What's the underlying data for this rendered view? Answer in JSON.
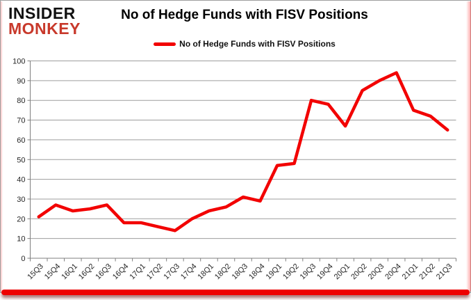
{
  "logo": {
    "line1": "INSIDER",
    "line2": "MONKEY"
  },
  "header": {
    "title": "No of Hedge Funds with FISV Positions"
  },
  "legend": {
    "label": "No of Hedge Funds with FISV Positions"
  },
  "colors": {
    "line": "#f20000",
    "logo_red": "#c8392b",
    "bottom_bar": "#ee0000",
    "grid": "#9d9d9d",
    "axis": "#7f7f7f",
    "tick_text": "#262626"
  },
  "chart_data": {
    "type": "line",
    "title": "No of Hedge Funds with FISV Positions",
    "categories": [
      "15Q3",
      "15Q4",
      "16Q1",
      "16Q2",
      "16Q3",
      "16Q4",
      "17Q1",
      "17Q2",
      "17Q3",
      "17Q4",
      "18Q1",
      "18Q2",
      "18Q3",
      "18Q4",
      "19Q1",
      "19Q2",
      "19Q3",
      "19Q4",
      "20Q1",
      "20Q2",
      "20Q3",
      "20Q4",
      "21Q1",
      "21Q2",
      "21Q3"
    ],
    "series": [
      {
        "name": "No of Hedge Funds with FISV Positions",
        "values": [
          21,
          27,
          24,
          25,
          27,
          18,
          18,
          16,
          14,
          20,
          24,
          26,
          31,
          29,
          47,
          48,
          80,
          78,
          67,
          85,
          90,
          94,
          75,
          72,
          65
        ]
      }
    ],
    "xlabel": "",
    "ylabel": "",
    "ylim": [
      0,
      100
    ],
    "ytick_step": 10,
    "ytick_labels": [
      "0",
      "10",
      "20",
      "30",
      "40",
      "50",
      "60",
      "70",
      "80",
      "90",
      "100"
    ],
    "grid": true,
    "legend_position": "top"
  }
}
